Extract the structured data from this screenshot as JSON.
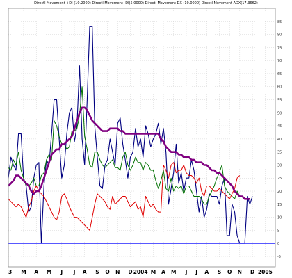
{
  "chart_data": {
    "type": "line",
    "title": "Directl Movement +DI (10.2000) Directl Movement -DI(5.0000) Directl Movement DX (10.0000) Directl Movement ADX(17.3662)",
    "xlabel": "",
    "ylabel": "",
    "ylim": [
      -9,
      90
    ],
    "y_ticks": [
      -5,
      0,
      5,
      10,
      15,
      20,
      25,
      30,
      35,
      40,
      45,
      50,
      55,
      60,
      65,
      70,
      75,
      80,
      85
    ],
    "y_axis_position": "right",
    "x_ticks": [
      {
        "label": "3",
        "i": 0
      },
      {
        "label": "M",
        "i": 6
      },
      {
        "label": "A",
        "i": 11
      },
      {
        "label": "M",
        "i": 16
      },
      {
        "label": "J",
        "i": 21
      },
      {
        "label": "J",
        "i": 26
      },
      {
        "label": "A",
        "i": 30
      },
      {
        "label": "S",
        "i": 35
      },
      {
        "label": "O",
        "i": 39
      },
      {
        "label": "N",
        "i": 43
      },
      {
        "label": "D",
        "i": 48
      },
      {
        "label": "2004",
        "i": 52
      },
      {
        "label": "M",
        "i": 57
      },
      {
        "label": "A",
        "i": 61
      },
      {
        "label": "M",
        "i": 65
      },
      {
        "label": "J",
        "i": 70
      },
      {
        "label": "J",
        "i": 74
      },
      {
        "label": "A",
        "i": 78
      },
      {
        "label": "S",
        "i": 83
      },
      {
        "label": "O",
        "i": 87
      },
      {
        "label": "N",
        "i": 91
      },
      {
        "label": "D",
        "i": 96
      },
      {
        "label": "2005",
        "i": 101
      }
    ],
    "n_points": 106,
    "grid": true,
    "legend": "none",
    "series": [
      {
        "color": "#000080",
        "values": [
          25,
          33,
          30,
          28,
          42,
          42,
          25,
          22,
          12,
          14,
          25,
          30,
          31,
          0,
          22,
          32,
          30,
          42,
          55,
          55,
          40,
          25,
          30,
          42,
          50,
          52,
          39,
          45,
          68,
          40,
          30,
          55,
          83,
          83,
          45,
          33,
          22,
          21,
          30,
          32,
          40,
          35,
          30,
          46,
          48,
          38,
          32,
          25,
          33,
          35,
          44,
          37,
          40,
          33,
          45,
          42,
          37,
          40,
          42,
          46,
          38,
          44,
          35,
          15,
          21,
          27,
          38,
          23,
          27,
          20,
          25,
          25,
          32,
          28,
          20,
          12,
          18,
          10,
          13,
          19,
          18,
          18,
          18,
          15,
          22,
          25,
          3,
          3,
          15,
          12,
          3,
          0,
          0,
          0,
          18,
          15,
          18,
          null,
          null,
          null,
          null,
          null,
          null,
          null,
          null,
          null
        ]
      },
      {
        "color": "#007000",
        "values": [
          29,
          28,
          32,
          30,
          35,
          28,
          25,
          22,
          22,
          23,
          25,
          22,
          22,
          26,
          27,
          32,
          34,
          32,
          47,
          45,
          41,
          38,
          38,
          36,
          37,
          43,
          43,
          44,
          49,
          60,
          41,
          36,
          30,
          29,
          35,
          35,
          32,
          30,
          29,
          30,
          31,
          32,
          29,
          29,
          28,
          33,
          35,
          30,
          28,
          30,
          33,
          31,
          31,
          28,
          31,
          30,
          28,
          28,
          24,
          21,
          24,
          28,
          21,
          20,
          25,
          20,
          22,
          21,
          22,
          19,
          22,
          22,
          20,
          18,
          18,
          18,
          17,
          15,
          15,
          18,
          20,
          22,
          25,
          27,
          30,
          22,
          20,
          19,
          18,
          17,
          20,
          18,
          null,
          null,
          null,
          null,
          null,
          null,
          null,
          null,
          null,
          null,
          null,
          null,
          null,
          null
        ]
      },
      {
        "color": "#e00000",
        "values": [
          17,
          16,
          15,
          14,
          15,
          14,
          12,
          10,
          14,
          16,
          20,
          22,
          20,
          19,
          18,
          16,
          14,
          12,
          10,
          9,
          12,
          18,
          19,
          17,
          14,
          12,
          10,
          10,
          9,
          8,
          7,
          6,
          5,
          10,
          15,
          19,
          18,
          17,
          16,
          14,
          13,
          18,
          15,
          16,
          17,
          18,
          18,
          16,
          14,
          15,
          16,
          13,
          14,
          10,
          18,
          16,
          14,
          15,
          13,
          12,
          12,
          30,
          28,
          25,
          30,
          31,
          27,
          28,
          28,
          30,
          27,
          26,
          26,
          25,
          23,
          25,
          20,
          18,
          22,
          22,
          21,
          20,
          20,
          21,
          20,
          19,
          18,
          17,
          19,
          21,
          25,
          26,
          null,
          null,
          null,
          null,
          null,
          null,
          null,
          null,
          null,
          null,
          null,
          null,
          null,
          null
        ]
      },
      {
        "color": "#800080",
        "values": [
          22,
          23,
          24,
          26,
          26,
          25,
          24,
          23,
          22,
          20,
          19,
          20,
          20,
          22,
          25,
          28,
          31,
          34,
          35,
          36,
          36,
          38,
          38,
          39,
          40,
          41,
          44,
          47,
          50,
          52,
          52,
          51,
          49,
          47,
          46,
          45,
          44,
          43,
          43,
          43,
          44,
          44,
          44,
          44,
          43,
          43,
          42,
          42,
          42,
          42,
          42,
          42,
          42,
          42,
          42,
          42,
          42,
          42,
          42,
          42,
          40,
          39,
          37,
          36,
          35,
          35,
          35,
          34,
          34,
          33,
          33,
          33,
          32,
          32,
          31,
          31,
          31,
          30,
          30,
          29,
          28,
          28,
          27,
          27,
          26,
          25,
          24,
          23,
          22,
          20,
          19,
          18,
          18,
          17,
          17,
          17,
          null,
          null,
          null,
          null,
          null,
          null,
          null,
          null,
          null,
          null
        ]
      },
      {
        "color": "#4040ff",
        "values": [
          0,
          0,
          0,
          0,
          0,
          0,
          0,
          0,
          0,
          0,
          0,
          0,
          0,
          0,
          0,
          0,
          0,
          0,
          0,
          0,
          0,
          0,
          0,
          0,
          0,
          0,
          0,
          0,
          0,
          0,
          0,
          0,
          0,
          0,
          0,
          0,
          0,
          0,
          0,
          0,
          0,
          0,
          0,
          0,
          0,
          0,
          0,
          0,
          0,
          0,
          0,
          0,
          0,
          0,
          0,
          0,
          0,
          0,
          0,
          0,
          0,
          0,
          0,
          0,
          0,
          0,
          0,
          0,
          0,
          0,
          0,
          0,
          0,
          0,
          0,
          0,
          0,
          0,
          0,
          0,
          0,
          0,
          0,
          0,
          0,
          0,
          0,
          0,
          0,
          0,
          0,
          0,
          0,
          0,
          0,
          0,
          0,
          0,
          0,
          0,
          0,
          0,
          0,
          0,
          0,
          0
        ]
      }
    ]
  }
}
